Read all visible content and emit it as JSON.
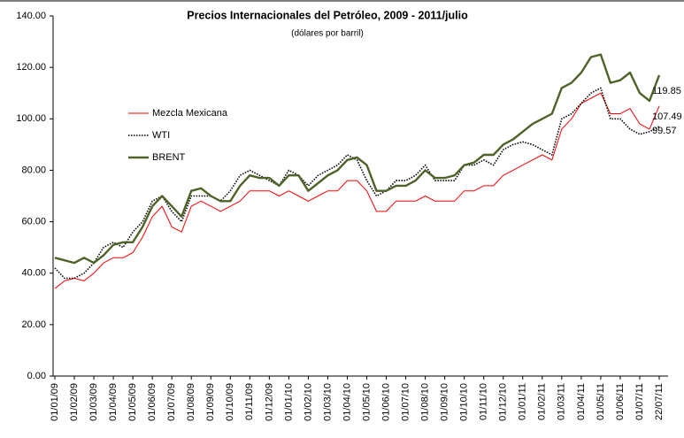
{
  "chart_data": {
    "type": "line",
    "title": "Precios Internacionales del Petróleo, 2009 - 2011/julio",
    "subtitle": "(dólares por barril)",
    "categories": [
      "01/01/09",
      null,
      "01/02/09",
      null,
      "01/03/09",
      null,
      "01/04/09",
      null,
      "01/05/09",
      null,
      "01/06/09",
      null,
      "01/07/09",
      null,
      "01/08/09",
      null,
      "01/09/09",
      null,
      "01/10/09",
      null,
      "01/11/09",
      null,
      "01/12/09",
      null,
      "01/01/10",
      null,
      "01/02/10",
      null,
      "01/03/10",
      null,
      "01/04/10",
      null,
      "01/05/10",
      null,
      "01/06/10",
      null,
      "01/07/10",
      null,
      "01/08/10",
      null,
      "01/09/10",
      null,
      "01/10/10",
      null,
      "01/11/10",
      null,
      "01/12/10",
      null,
      "01/01/11",
      null,
      "01/02/11",
      null,
      "01/03/11",
      null,
      "01/04/11",
      null,
      "01/05/11",
      null,
      "01/06/11",
      null,
      "01/07/11",
      null,
      "22/07/11"
    ],
    "series": [
      {
        "name": "Mezcla Mexicana",
        "color": "#ff0000",
        "style": "solid",
        "width": 1,
        "values": [
          34,
          37,
          38,
          37,
          40,
          44,
          46,
          46,
          48,
          54,
          62,
          66,
          58,
          56,
          66,
          68,
          66,
          64,
          66,
          68,
          72,
          72,
          72,
          70,
          72,
          70,
          68,
          70,
          72,
          72,
          76,
          76,
          72,
          64,
          64,
          68,
          68,
          68,
          70,
          68,
          68,
          68,
          72,
          72,
          74,
          74,
          78,
          80,
          82,
          84,
          86,
          84,
          96,
          100,
          106,
          108,
          110,
          102,
          102,
          104,
          98,
          96,
          105
        ]
      },
      {
        "name": "WTI",
        "color": "#000000",
        "style": "dotted",
        "width": 1.6,
        "values": [
          42,
          38,
          38,
          40,
          44,
          50,
          52,
          50,
          56,
          60,
          68,
          70,
          64,
          60,
          70,
          70,
          70,
          68,
          72,
          78,
          80,
          78,
          76,
          74,
          80,
          78,
          74,
          78,
          80,
          82,
          86,
          84,
          76,
          70,
          72,
          76,
          76,
          78,
          82,
          76,
          76,
          76,
          82,
          82,
          84,
          82,
          88,
          90,
          91,
          90,
          88,
          86,
          100,
          102,
          106,
          110,
          112,
          100,
          100,
          96,
          94,
          95,
          97
        ]
      },
      {
        "name": "BRENT",
        "color": "#4f6228",
        "style": "solid",
        "width": 2.4,
        "values": [
          46,
          45,
          44,
          46,
          44,
          47,
          51,
          52,
          52,
          58,
          66,
          70,
          66,
          62,
          72,
          73,
          70,
          68,
          68,
          74,
          78,
          77,
          77,
          74,
          78,
          78,
          72,
          75,
          78,
          80,
          84,
          85,
          82,
          72,
          72,
          74,
          74,
          76,
          80,
          77,
          77,
          78,
          82,
          83,
          86,
          86,
          90,
          92,
          95,
          98,
          100,
          102,
          112,
          114,
          118,
          124,
          125,
          114,
          115,
          118,
          110,
          107,
          117
        ]
      }
    ],
    "annotations": [
      "119.85",
      "107.49",
      "99.57"
    ],
    "ylim": [
      0,
      140
    ],
    "yticks": [
      {
        "value": 0,
        "label": "0.00"
      },
      {
        "value": 20,
        "label": "20.00"
      },
      {
        "value": 40,
        "label": "40.00"
      },
      {
        "value": 60,
        "label": "60.00"
      },
      {
        "value": 80,
        "label": "80.00"
      },
      {
        "value": 100,
        "label": "100.00"
      },
      {
        "value": 120,
        "label": "120.00"
      },
      {
        "value": 140,
        "label": "140.00"
      }
    ],
    "grid": false
  }
}
